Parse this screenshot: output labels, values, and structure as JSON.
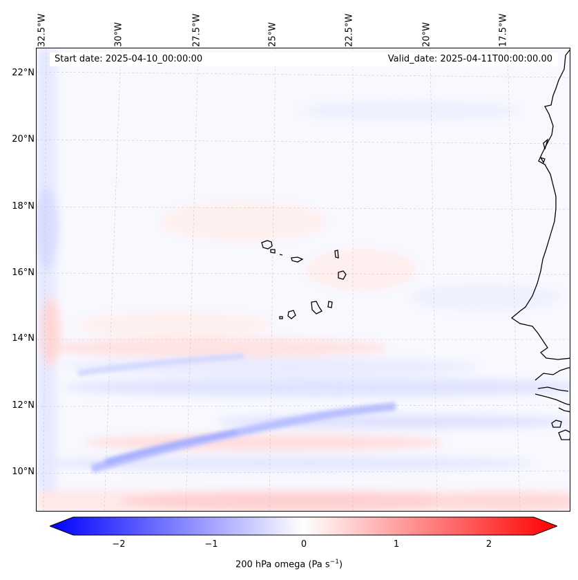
{
  "map": {
    "start_date": "Start date: 2025-04-10_00:00:00",
    "valid_date": "Valid_date: 2025-04-11T00:00:00.00",
    "lon_labels": [
      "32.5°W",
      "30°W",
      "27.5°W",
      "25°W",
      "22.5°W",
      "20°W",
      "17.5°W"
    ],
    "lat_labels": [
      "22°N",
      "20°N",
      "18°N",
      "16°N",
      "14°N",
      "12°N",
      "10°N"
    ],
    "colorbar": {
      "tick_labels": [
        "−2",
        "−1",
        "0",
        "1",
        "2"
      ],
      "title": "200 hPa omega (Pa s",
      "title_exp": "−1",
      "title_end": ")",
      "min": -2.5,
      "max": 2.5,
      "colors": {
        "neg": "#0000ff",
        "mid": "#ffffff",
        "pos": "#ff0000"
      }
    }
  }
}
